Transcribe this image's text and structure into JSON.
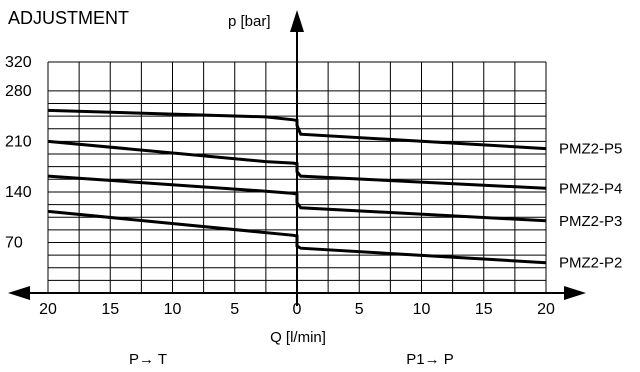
{
  "chart_data": {
    "type": "line",
    "title": "ADJUSTMENT",
    "ylabel": "p [bar]",
    "xlabel": "Q [l/min]",
    "x_direction_labels": {
      "left": "P→ T",
      "right": "P1→ P"
    },
    "x_ticks_left": [
      20,
      15,
      10,
      5,
      0
    ],
    "x_ticks_right": [
      0,
      5,
      10,
      15,
      20
    ],
    "y_ticks": [
      70,
      140,
      210,
      280,
      320
    ],
    "xlim": [
      -20,
      20
    ],
    "ylim": [
      0,
      320
    ],
    "grid": true,
    "series": [
      {
        "name": "PMZ2-P5",
        "points": [
          [
            -20,
            253
          ],
          [
            -2.5,
            244
          ],
          [
            -0.3,
            240
          ],
          [
            0,
            239
          ],
          [
            0,
            232
          ],
          [
            0.3,
            220
          ],
          [
            20,
            200
          ]
        ]
      },
      {
        "name": "PMZ2-P4",
        "points": [
          [
            -20,
            210
          ],
          [
            -2.5,
            182
          ],
          [
            -0.3,
            180
          ],
          [
            0,
            179
          ],
          [
            0,
            168
          ],
          [
            0.3,
            162
          ],
          [
            20,
            145
          ]
        ]
      },
      {
        "name": "PMZ2-P3",
        "points": [
          [
            -20,
            162
          ],
          [
            -2.5,
            141
          ],
          [
            -0.3,
            138
          ],
          [
            0,
            137
          ],
          [
            0,
            125
          ],
          [
            0.3,
            118
          ],
          [
            20,
            100
          ]
        ]
      },
      {
        "name": "PMZ2-P2",
        "points": [
          [
            -20,
            113
          ],
          [
            -0.3,
            80
          ],
          [
            0,
            79
          ],
          [
            0,
            65
          ],
          [
            0.3,
            62
          ],
          [
            20,
            42
          ]
        ]
      }
    ]
  }
}
